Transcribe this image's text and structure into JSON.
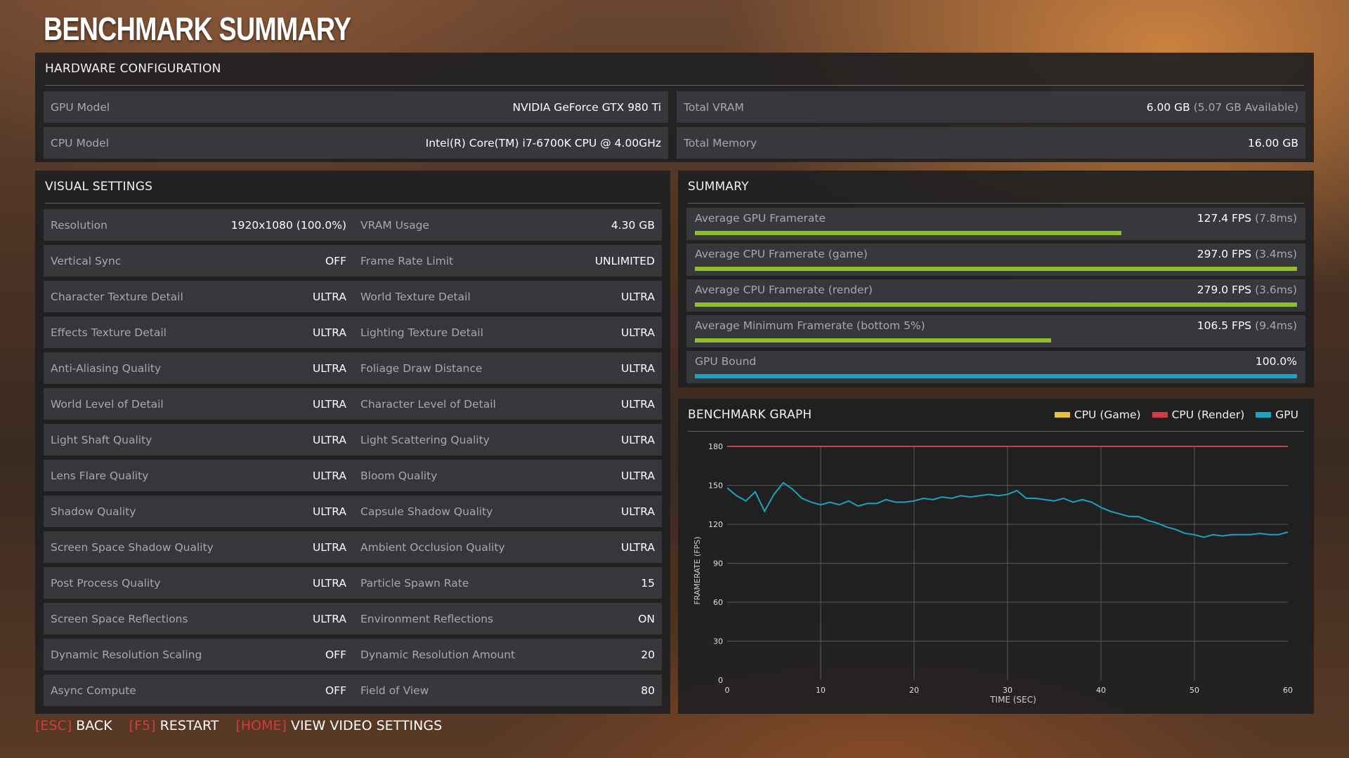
{
  "page_title": "BENCHMARK SUMMARY",
  "hardware": {
    "heading": "HARDWARE CONFIGURATION",
    "gpu_label": "GPU Model",
    "gpu_value": "NVIDIA GeForce GTX 980 Ti",
    "cpu_label": "CPU Model",
    "cpu_value": "Intel(R) Core(TM) i7-6700K CPU @ 4.00GHz",
    "vram_label": "Total VRAM",
    "vram_value": "6.00 GB",
    "vram_available": "(5.07 GB Available)",
    "memory_label": "Total Memory",
    "memory_value": "16.00 GB"
  },
  "visual": {
    "heading": "VISUAL SETTINGS",
    "left": [
      {
        "label": "Resolution",
        "value": "1920x1080 (100.0%)"
      },
      {
        "label": "Vertical Sync",
        "value": "OFF"
      },
      {
        "label": "Character Texture Detail",
        "value": "ULTRA"
      },
      {
        "label": "Effects Texture Detail",
        "value": "ULTRA"
      },
      {
        "label": "Anti-Aliasing Quality",
        "value": "ULTRA"
      },
      {
        "label": "World Level of Detail",
        "value": "ULTRA"
      },
      {
        "label": "Light Shaft Quality",
        "value": "ULTRA"
      },
      {
        "label": "Lens Flare Quality",
        "value": "ULTRA"
      },
      {
        "label": "Shadow Quality",
        "value": "ULTRA"
      },
      {
        "label": "Screen Space Shadow Quality",
        "value": "ULTRA"
      },
      {
        "label": "Post Process Quality",
        "value": "ULTRA"
      },
      {
        "label": "Screen Space Reflections",
        "value": "ULTRA"
      },
      {
        "label": "Dynamic Resolution Scaling",
        "value": "OFF"
      },
      {
        "label": "Async Compute",
        "value": "OFF"
      }
    ],
    "right": [
      {
        "label": "VRAM Usage",
        "value": "4.30 GB"
      },
      {
        "label": "Frame Rate Limit",
        "value": "UNLIMITED"
      },
      {
        "label": "World Texture Detail",
        "value": "ULTRA"
      },
      {
        "label": "Lighting Texture Detail",
        "value": "ULTRA"
      },
      {
        "label": "Foliage Draw Distance",
        "value": "ULTRA"
      },
      {
        "label": "Character Level of Detail",
        "value": "ULTRA"
      },
      {
        "label": "Light Scattering Quality",
        "value": "ULTRA"
      },
      {
        "label": "Bloom Quality",
        "value": "ULTRA"
      },
      {
        "label": "Capsule Shadow Quality",
        "value": "ULTRA"
      },
      {
        "label": "Ambient Occlusion Quality",
        "value": "ULTRA"
      },
      {
        "label": "Particle Spawn Rate",
        "value": "15"
      },
      {
        "label": "Environment Reflections",
        "value": "ON"
      },
      {
        "label": "Dynamic Resolution Amount",
        "value": "20"
      },
      {
        "label": "Field of View",
        "value": "80"
      }
    ]
  },
  "summary": {
    "heading": "SUMMARY",
    "items": [
      {
        "label": "Average GPU Framerate",
        "value": "127.4 FPS",
        "sub": "(7.8ms)",
        "fraction": 0.708,
        "color": "#8fbf2a"
      },
      {
        "label": "Average CPU Framerate (game)",
        "value": "297.0 FPS",
        "sub": "(3.4ms)",
        "fraction": 1.0,
        "color": "#8fbf2a"
      },
      {
        "label": "Average CPU Framerate (render)",
        "value": "279.0 FPS",
        "sub": "(3.6ms)",
        "fraction": 1.0,
        "color": "#8fbf2a"
      },
      {
        "label": "Average Minimum Framerate (bottom 5%)",
        "value": "106.5 FPS",
        "sub": "(9.4ms)",
        "fraction": 0.592,
        "color": "#8fbf2a"
      },
      {
        "label": "GPU Bound",
        "value": "100.0%",
        "sub": "",
        "fraction": 1.0,
        "color": "#1aa3c0"
      }
    ]
  },
  "chart_data": {
    "type": "line",
    "title": "BENCHMARK GRAPH",
    "xlabel": "TIME (SEC)",
    "ylabel": "FRAMERATE (FPS)",
    "xlim": [
      0,
      60
    ],
    "ylim": [
      0,
      180
    ],
    "x_ticks": [
      0,
      10,
      20,
      30,
      40,
      50,
      60
    ],
    "y_ticks": [
      0,
      30,
      60,
      90,
      120,
      150,
      180
    ],
    "grid": true,
    "legend_position": "top-right",
    "series": [
      {
        "name": "CPU (Game)",
        "color": "#e8c33a",
        "x": [
          0,
          60
        ],
        "y": [
          180,
          180
        ]
      },
      {
        "name": "CPU (Render)",
        "color": "#d63b45",
        "x": [
          0,
          60
        ],
        "y": [
          180,
          180
        ]
      },
      {
        "name": "GPU",
        "color": "#1aa3c0",
        "x": [
          0,
          1,
          2,
          3,
          4,
          5,
          6,
          7,
          8,
          9,
          10,
          11,
          12,
          13,
          14,
          15,
          16,
          17,
          18,
          19,
          20,
          21,
          22,
          23,
          24,
          25,
          26,
          27,
          28,
          29,
          30,
          31,
          32,
          33,
          34,
          35,
          36,
          37,
          38,
          39,
          40,
          41,
          42,
          43,
          44,
          45,
          46,
          47,
          48,
          49,
          50,
          51,
          52,
          53,
          54,
          55,
          56,
          57,
          58,
          59,
          60
        ],
        "y": [
          148,
          142,
          138,
          145,
          130,
          143,
          152,
          147,
          140,
          137,
          135,
          137,
          135,
          138,
          134,
          136,
          136,
          139,
          137,
          137,
          138,
          140,
          139,
          141,
          140,
          142,
          141,
          142,
          143,
          142,
          143,
          146,
          140,
          140,
          139,
          138,
          140,
          137,
          139,
          137,
          133,
          130,
          128,
          126,
          126,
          123,
          121,
          118,
          116,
          113,
          112,
          110,
          112,
          111,
          112,
          112,
          112,
          113,
          112,
          112,
          114
        ]
      }
    ]
  },
  "footer": {
    "esc_key": "ESC",
    "esc_label": "BACK",
    "f5_key": "F5",
    "f5_label": "RESTART",
    "home_key": "HOME",
    "home_label": "VIEW VIDEO SETTINGS"
  }
}
